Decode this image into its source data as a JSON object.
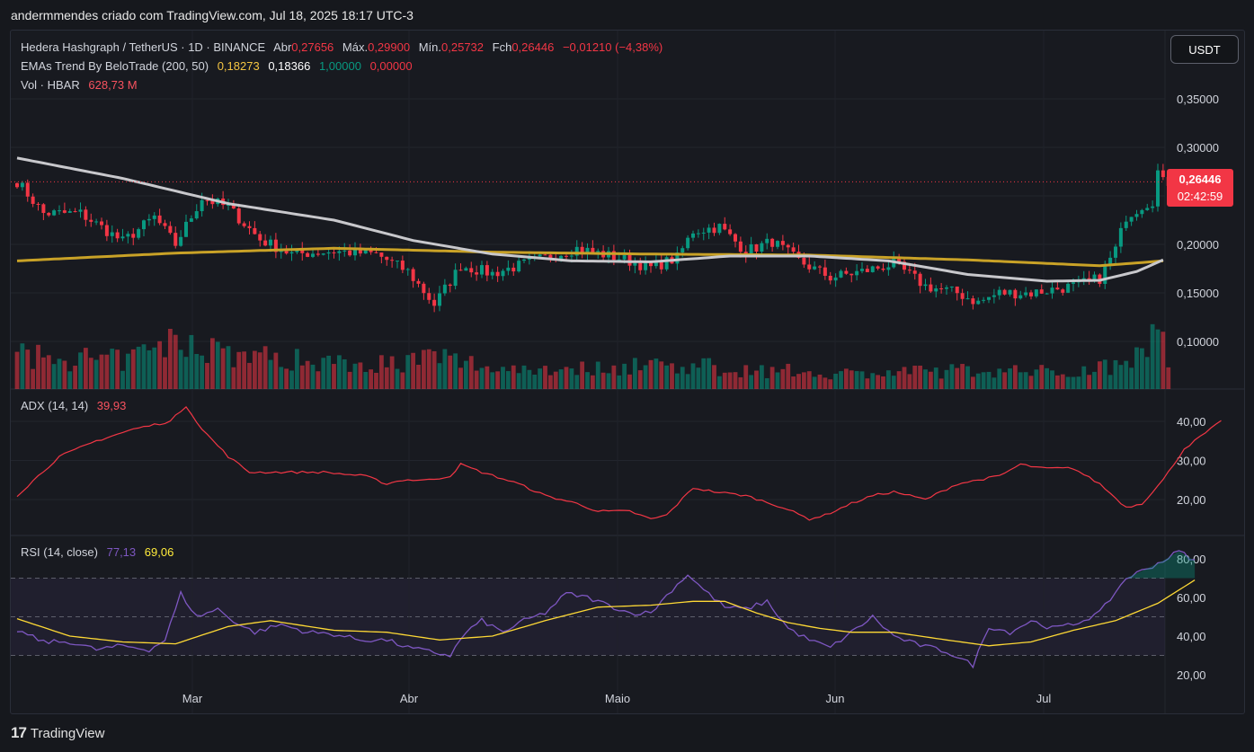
{
  "header": {
    "attribution": "andermmendes criado com TradingView.com, Jul 18, 2025 18:17 UTC-3"
  },
  "symbol": {
    "name": "Hedera Hashgraph / TetherUS · 1D · BINANCE",
    "o_label": "Abr",
    "o": "0,27656",
    "h_label": "Máx.",
    "h": "0,29900",
    "l_label": "Mín.",
    "l": "0,25732",
    "c_label": "Fch",
    "c": "0,26446",
    "chg": "−0,01210 (−4,38%)"
  },
  "ema": {
    "label": "EMAs Trend By BeloTrade (200, 50)",
    "v1": "0,18273",
    "v2": "0,18366",
    "v3": "1,00000",
    "v4": "0,00000"
  },
  "vol": {
    "label": "Vol · HBAR",
    "value": "628,73 M"
  },
  "adx": {
    "label": "ADX (14, 14)",
    "value": "39,93"
  },
  "rsi": {
    "label": "RSI (14, close)",
    "value": "77,13",
    "ma": "69,06"
  },
  "currency_button": "USDT",
  "last_price": {
    "price": "0,26446",
    "countdown": "02:42:59"
  },
  "price_axis": [
    "0,35000",
    "0,30000",
    "0,25000",
    "0,20000",
    "0,15000",
    "0,10000"
  ],
  "adx_axis": [
    "40,00",
    "30,00",
    "20,00"
  ],
  "rsi_axis": [
    "80,00",
    "60,00",
    "40,00",
    "20,00"
  ],
  "x_axis": [
    "Mar",
    "Abr",
    "Maio",
    "Jun",
    "Jul"
  ],
  "brand": "TradingView",
  "colors": {
    "up": "#089981",
    "down": "#f23645",
    "ema200": "#c9a227",
    "ema50": "#c8c8cc",
    "adx": "#f23645",
    "rsi": "#7e57c2",
    "rsi_ma": "#fdd835"
  },
  "chart_data": {
    "type": "candlestick",
    "price_ylim": [
      0.1,
      0.35
    ],
    "close_anchors": [
      [
        0,
        0.265
      ],
      [
        5,
        0.232
      ],
      [
        12,
        0.232
      ],
      [
        20,
        0.203
      ],
      [
        26,
        0.228
      ],
      [
        30,
        0.2
      ],
      [
        35,
        0.248
      ],
      [
        40,
        0.238
      ],
      [
        46,
        0.205
      ],
      [
        52,
        0.19
      ],
      [
        60,
        0.193
      ],
      [
        68,
        0.19
      ],
      [
        74,
        0.172
      ],
      [
        79,
        0.138
      ],
      [
        84,
        0.178
      ],
      [
        90,
        0.17
      ],
      [
        98,
        0.183
      ],
      [
        106,
        0.196
      ],
      [
        114,
        0.186
      ],
      [
        120,
        0.176
      ],
      [
        125,
        0.186
      ],
      [
        128,
        0.214
      ],
      [
        133,
        0.218
      ],
      [
        138,
        0.193
      ],
      [
        143,
        0.203
      ],
      [
        148,
        0.183
      ],
      [
        154,
        0.166
      ],
      [
        160,
        0.172
      ],
      [
        166,
        0.18
      ],
      [
        172,
        0.157
      ],
      [
        178,
        0.15
      ],
      [
        182,
        0.14
      ],
      [
        186,
        0.15
      ],
      [
        192,
        0.15
      ],
      [
        200,
        0.157
      ],
      [
        205,
        0.165
      ],
      [
        208,
        0.195
      ],
      [
        210,
        0.229
      ],
      [
        213,
        0.24
      ],
      [
        215,
        0.245
      ],
      [
        216,
        0.275
      ],
      [
        217,
        0.264
      ]
    ],
    "ema200_anchors": [
      [
        0,
        0.183
      ],
      [
        30,
        0.191
      ],
      [
        60,
        0.196
      ],
      [
        90,
        0.192
      ],
      [
        120,
        0.19
      ],
      [
        150,
        0.189
      ],
      [
        180,
        0.184
      ],
      [
        205,
        0.178
      ],
      [
        217,
        0.183
      ]
    ],
    "ema50_anchors": [
      [
        0,
        0.289
      ],
      [
        20,
        0.268
      ],
      [
        40,
        0.242
      ],
      [
        60,
        0.225
      ],
      [
        75,
        0.204
      ],
      [
        90,
        0.19
      ],
      [
        105,
        0.183
      ],
      [
        120,
        0.182
      ],
      [
        135,
        0.188
      ],
      [
        150,
        0.188
      ],
      [
        165,
        0.183
      ],
      [
        180,
        0.169
      ],
      [
        195,
        0.162
      ],
      [
        205,
        0.163
      ],
      [
        212,
        0.172
      ],
      [
        217,
        0.184
      ]
    ],
    "adx_ylim": [
      10,
      50
    ],
    "adx_anchors": [
      [
        0,
        21
      ],
      [
        8,
        31
      ],
      [
        15,
        35
      ],
      [
        22,
        38
      ],
      [
        29,
        40
      ],
      [
        32,
        44
      ],
      [
        35,
        38
      ],
      [
        40,
        31
      ],
      [
        44,
        27
      ],
      [
        50,
        27
      ],
      [
        58,
        27
      ],
      [
        66,
        26
      ],
      [
        70,
        24
      ],
      [
        73,
        25
      ],
      [
        78,
        25
      ],
      [
        82,
        26
      ],
      [
        84,
        29
      ],
      [
        88,
        27
      ],
      [
        95,
        24
      ],
      [
        100,
        21
      ],
      [
        106,
        19
      ],
      [
        110,
        17
      ],
      [
        116,
        17
      ],
      [
        120,
        15
      ],
      [
        123,
        16
      ],
      [
        128,
        23
      ],
      [
        132,
        22
      ],
      [
        138,
        21
      ],
      [
        145,
        18
      ],
      [
        150,
        15
      ],
      [
        153,
        16
      ],
      [
        158,
        19
      ],
      [
        162,
        21
      ],
      [
        166,
        22
      ],
      [
        172,
        20
      ],
      [
        178,
        24
      ],
      [
        182,
        25
      ],
      [
        186,
        26
      ],
      [
        190,
        29
      ],
      [
        194,
        28
      ],
      [
        200,
        28
      ],
      [
        205,
        24
      ],
      [
        210,
        18
      ],
      [
        213,
        19
      ],
      [
        217,
        25
      ],
      [
        221,
        33
      ],
      [
        228,
        40
      ]
    ],
    "rsi_ylim": [
      15,
      90
    ],
    "rsi_anchors": [
      [
        0,
        43
      ],
      [
        5,
        37
      ],
      [
        10,
        37
      ],
      [
        15,
        33
      ],
      [
        20,
        35
      ],
      [
        25,
        33
      ],
      [
        28,
        38
      ],
      [
        31,
        62
      ],
      [
        34,
        50
      ],
      [
        38,
        54
      ],
      [
        42,
        46
      ],
      [
        45,
        42
      ],
      [
        50,
        46
      ],
      [
        55,
        42
      ],
      [
        60,
        41
      ],
      [
        65,
        38
      ],
      [
        70,
        38
      ],
      [
        74,
        34
      ],
      [
        78,
        32
      ],
      [
        82,
        30
      ],
      [
        85,
        42
      ],
      [
        88,
        48
      ],
      [
        92,
        42
      ],
      [
        96,
        48
      ],
      [
        100,
        52
      ],
      [
        104,
        62
      ],
      [
        108,
        60
      ],
      [
        112,
        56
      ],
      [
        116,
        52
      ],
      [
        120,
        52
      ],
      [
        124,
        64
      ],
      [
        127,
        72
      ],
      [
        130,
        64
      ],
      [
        134,
        55
      ],
      [
        138,
        54
      ],
      [
        142,
        58
      ],
      [
        146,
        44
      ],
      [
        150,
        38
      ],
      [
        154,
        34
      ],
      [
        158,
        42
      ],
      [
        162,
        50
      ],
      [
        166,
        40
      ],
      [
        170,
        36
      ],
      [
        176,
        32
      ],
      [
        181,
        25
      ],
      [
        184,
        45
      ],
      [
        188,
        42
      ],
      [
        192,
        48
      ],
      [
        196,
        44
      ],
      [
        200,
        46
      ],
      [
        205,
        52
      ],
      [
        210,
        70
      ],
      [
        214,
        75
      ],
      [
        217,
        79
      ],
      [
        220,
        84
      ],
      [
        223,
        79
      ]
    ],
    "rsi_ma_anchors": [
      [
        0,
        49
      ],
      [
        10,
        40
      ],
      [
        20,
        37
      ],
      [
        30,
        36
      ],
      [
        40,
        45
      ],
      [
        48,
        48
      ],
      [
        60,
        43
      ],
      [
        70,
        42
      ],
      [
        80,
        38
      ],
      [
        90,
        40
      ],
      [
        100,
        48
      ],
      [
        110,
        55
      ],
      [
        120,
        56
      ],
      [
        128,
        58
      ],
      [
        134,
        58
      ],
      [
        140,
        52
      ],
      [
        146,
        47
      ],
      [
        152,
        44
      ],
      [
        158,
        42
      ],
      [
        166,
        42
      ],
      [
        176,
        38
      ],
      [
        184,
        35
      ],
      [
        192,
        37
      ],
      [
        200,
        43
      ],
      [
        208,
        48
      ],
      [
        216,
        57
      ],
      [
        223,
        69
      ]
    ],
    "volume_anchors": [
      [
        0,
        0.38
      ],
      [
        20,
        0.33
      ],
      [
        30,
        0.55
      ],
      [
        35,
        0.54
      ],
      [
        40,
        0.42
      ],
      [
        50,
        0.35
      ],
      [
        70,
        0.3
      ],
      [
        80,
        0.37
      ],
      [
        90,
        0.25
      ],
      [
        110,
        0.24
      ],
      [
        120,
        0.3
      ],
      [
        128,
        0.27
      ],
      [
        140,
        0.22
      ],
      [
        160,
        0.18
      ],
      [
        180,
        0.22
      ],
      [
        200,
        0.2
      ],
      [
        210,
        0.32
      ],
      [
        213,
        0.65
      ],
      [
        216,
        0.58
      ],
      [
        218,
        0.42
      ]
    ],
    "n_bars": 219
  }
}
